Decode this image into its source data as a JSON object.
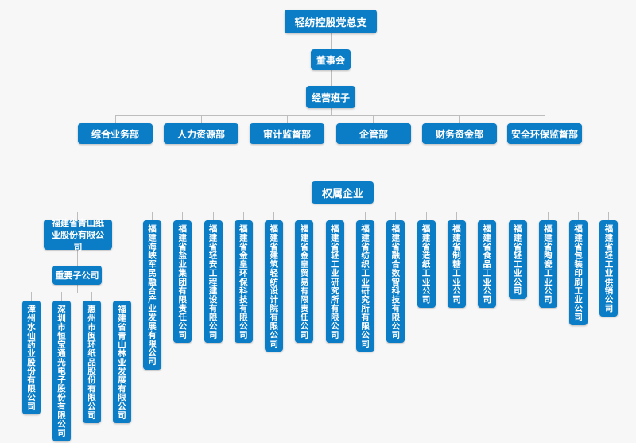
{
  "top": {
    "title": "轻纺控股党总支"
  },
  "board": {
    "label": "董事会"
  },
  "management": {
    "label": "经营班子"
  },
  "departments": [
    {
      "label": "综合业务部"
    },
    {
      "label": "人力资源部"
    },
    {
      "label": "审计监督部"
    },
    {
      "label": "企管部"
    },
    {
      "label": "财务资金部"
    },
    {
      "label": "安全环保监督部"
    }
  ],
  "affiliates": {
    "label": "权属企业",
    "qingshan": {
      "name": "福建省青山纸业股份有限公司",
      "key_subsidiaries_label": "重要子公司",
      "key_subsidiaries": [
        {
          "name": "漳州水仙药业股份有限公司"
        },
        {
          "name": "深圳市恒宝通光电子股份有限公司"
        },
        {
          "name": "惠州市闽环纸品股份有限公司"
        },
        {
          "name": "福建省青山林业发展有限公司"
        }
      ]
    },
    "companies": [
      {
        "name": "福建海峡军民融合产业发展有限公司"
      },
      {
        "name": "福建省盐业集团有限责任公司"
      },
      {
        "name": "福建省轻安工程建设有限公司"
      },
      {
        "name": "福建省金皇环保科技有限公司"
      },
      {
        "name": "福建省建筑轻纺设计院有限公司"
      },
      {
        "name": "福建省金皇贸易有限责任公司"
      },
      {
        "name": "福建省轻工业研究所有限公司"
      },
      {
        "name": "福建省纺织工业研究所有限公司"
      },
      {
        "name": "福建省融合数智科技有限公司"
      },
      {
        "name": "福建省造纸工业公司"
      },
      {
        "name": "福建省制糖工业公司"
      },
      {
        "name": "福建省食品工业公司"
      },
      {
        "name": "福建省轻工业公司"
      },
      {
        "name": "福建省陶瓷工业公司"
      },
      {
        "name": "福建省包装印刷工业公司"
      },
      {
        "name": "福建省轻工业供销公司"
      }
    ]
  },
  "colors": {
    "box": "#0b7dc6",
    "background": "#f7f7f7",
    "connector": "#bdbdbd"
  }
}
